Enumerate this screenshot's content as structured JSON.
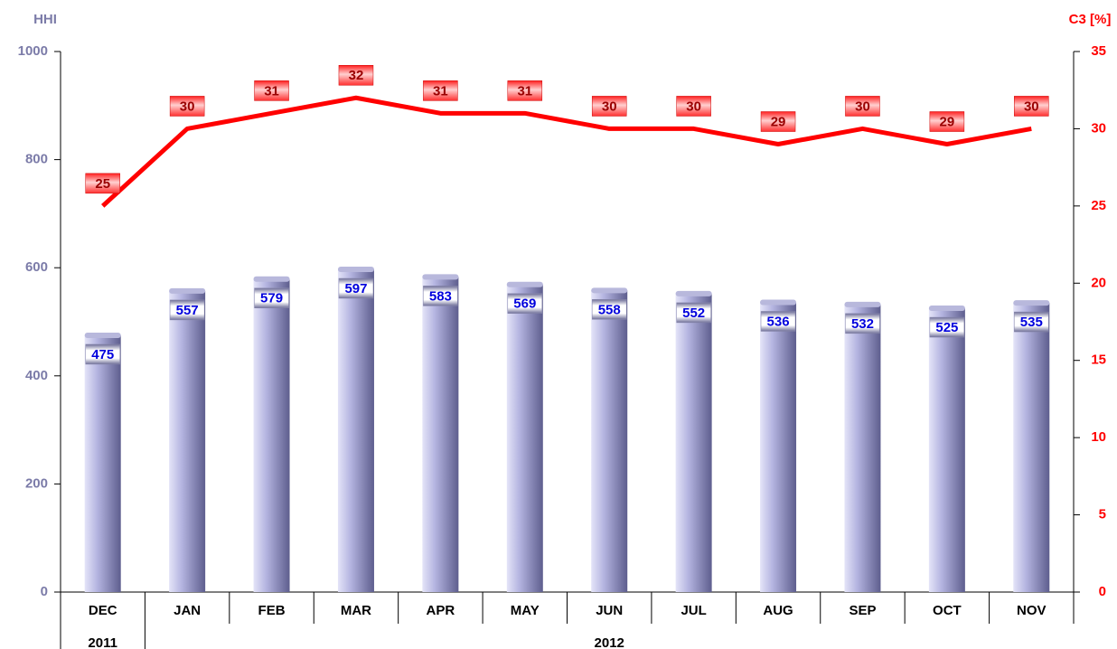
{
  "chart_data": {
    "type": "combo",
    "y_label": "HHI",
    "y2_label": "C3 [%]",
    "categories": [
      "DEC",
      "JAN",
      "FEB",
      "MAR",
      "APR",
      "MAY",
      "JUN",
      "JUL",
      "AUG",
      "SEP",
      "OCT",
      "NOV"
    ],
    "x_groups": [
      {
        "label": "2011",
        "count": 1
      },
      {
        "label": "2012",
        "count": 11
      }
    ],
    "series": [
      {
        "type": "bar",
        "axis": "y",
        "color": "#9a9ad0",
        "values": [
          475,
          557,
          579,
          597,
          583,
          569,
          558,
          552,
          536,
          532,
          525,
          535
        ]
      },
      {
        "type": "line",
        "axis": "y2",
        "color": "#ff0000",
        "values": [
          25,
          30,
          31,
          32,
          31,
          31,
          30,
          30,
          29,
          30,
          29,
          30
        ]
      }
    ],
    "ylim": [
      0,
      1000
    ],
    "yticks": [
      0,
      200,
      400,
      600,
      800,
      1000
    ],
    "y2lim": [
      0,
      35
    ],
    "y2ticks": [
      0,
      5,
      10,
      15,
      20,
      25,
      30,
      35
    ]
  }
}
